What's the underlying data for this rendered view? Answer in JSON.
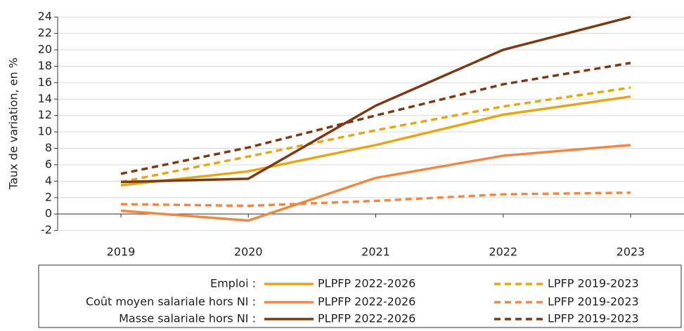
{
  "chart_data": {
    "type": "line",
    "y_label": "Taux de variation, en %",
    "categories": [
      "2019",
      "2020",
      "2021",
      "2022",
      "2023"
    ],
    "ylim": [
      -2,
      24
    ],
    "yticks": [
      -2,
      0,
      2,
      4,
      6,
      8,
      10,
      12,
      14,
      16,
      18,
      20,
      22,
      24
    ],
    "grid": true,
    "legend_rows": [
      "Emploi :",
      "Coût moyen salariale hors NI :",
      "Masse salariale hors NI :"
    ],
    "series": [
      {
        "name": "PLPFP 2022-2026",
        "row": 0,
        "dashed": false,
        "color": "#e3a719",
        "values": [
          3.5,
          5.2,
          8.4,
          12.1,
          14.3
        ]
      },
      {
        "name": "LPFP 2019-2023",
        "row": 0,
        "dashed": true,
        "color": "#e3a719",
        "values": [
          3.9,
          7.0,
          10.2,
          13.1,
          15.4
        ]
      },
      {
        "name": "PLPFP 2022-2026",
        "row": 1,
        "dashed": false,
        "color": "#ef8844",
        "values": [
          0.4,
          -0.8,
          4.4,
          7.1,
          8.4
        ]
      },
      {
        "name": "LPFP 2019-2023",
        "row": 1,
        "dashed": true,
        "color": "#ef8844",
        "values": [
          1.2,
          1.0,
          1.6,
          2.4,
          2.6
        ]
      },
      {
        "name": "PLPFP 2022-2026",
        "row": 2,
        "dashed": false,
        "color": "#7a3b14",
        "values": [
          3.9,
          4.3,
          13.2,
          20.0,
          24.0
        ]
      },
      {
        "name": "LPFP 2019-2023",
        "row": 2,
        "dashed": true,
        "color": "#7a3b14",
        "values": [
          4.9,
          8.1,
          12.0,
          15.8,
          18.4
        ]
      }
    ]
  }
}
